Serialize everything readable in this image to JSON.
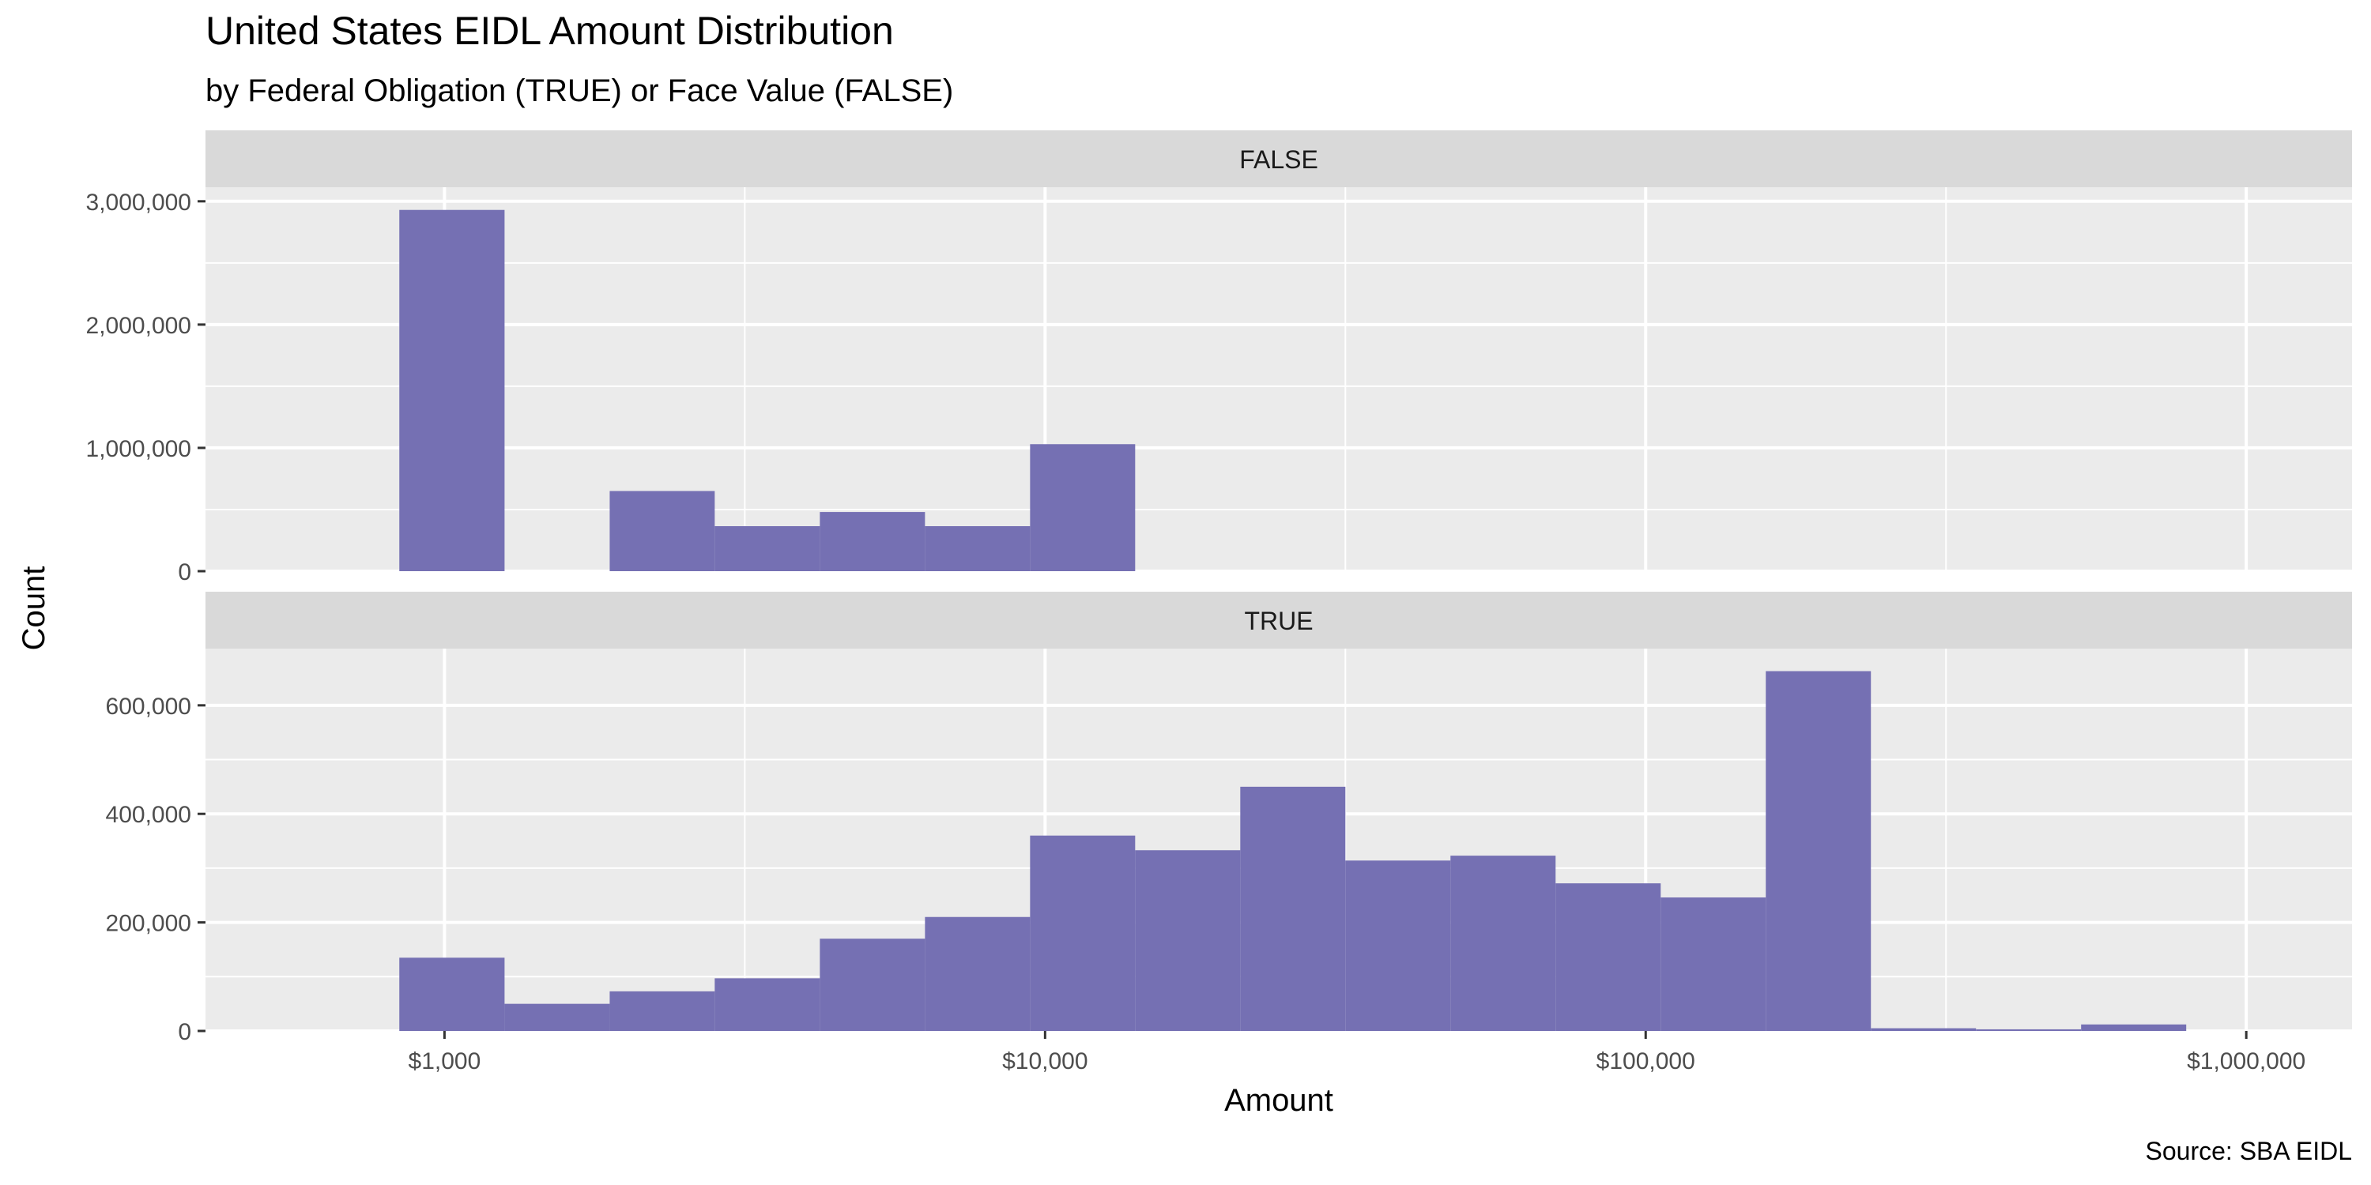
{
  "chart_data": {
    "type": "bar",
    "title": "United States EIDL Amount Distribution",
    "subtitle": "by Federal Obligation (TRUE) or Face Value (FALSE)",
    "xlabel": "Amount",
    "ylabel": "Count",
    "caption": "Source: SBA EIDL",
    "x_scale": "log10",
    "x_range": [
      400,
      1500000
    ],
    "x_ticks": [
      {
        "value": 1000,
        "label": "$1,000"
      },
      {
        "value": 10000,
        "label": "$10,000"
      },
      {
        "value": 100000,
        "label": "$100,000"
      },
      {
        "value": 1000000,
        "label": "$1,000,000"
      }
    ],
    "bin_edges": [
      841,
      1259,
      1884,
      2818,
      4217,
      6310,
      9441,
      14125,
      21135,
      31623,
      47315,
      70795,
      105925,
      158489,
      237137,
      354813,
      530884,
      794328
    ],
    "bar_color": "#7570b3",
    "grid": true,
    "panels": [
      {
        "strip_label": "FALSE",
        "ylim": [
          0,
          3050000
        ],
        "y_ticks": [
          {
            "value": 0,
            "label": "0"
          },
          {
            "value": 1000000,
            "label": "1,000,000"
          },
          {
            "value": 2000000,
            "label": "2,000,000"
          },
          {
            "value": 3000000,
            "label": "3,000,000"
          }
        ],
        "counts": [
          2930000,
          0,
          650000,
          365000,
          480000,
          365000,
          1030000,
          0,
          0,
          0,
          0,
          0,
          0,
          0,
          0,
          0,
          0
        ]
      },
      {
        "strip_label": "TRUE",
        "ylim": [
          0,
          690000
        ],
        "y_ticks": [
          {
            "value": 0,
            "label": "0"
          },
          {
            "value": 200000,
            "label": "200,000"
          },
          {
            "value": 400000,
            "label": "400,000"
          },
          {
            "value": 600000,
            "label": "600,000"
          }
        ],
        "counts": [
          135000,
          50000,
          73000,
          97000,
          170000,
          210000,
          360000,
          333000,
          450000,
          314000,
          323000,
          272000,
          246000,
          663000,
          5000,
          3000,
          12000
        ]
      }
    ]
  }
}
